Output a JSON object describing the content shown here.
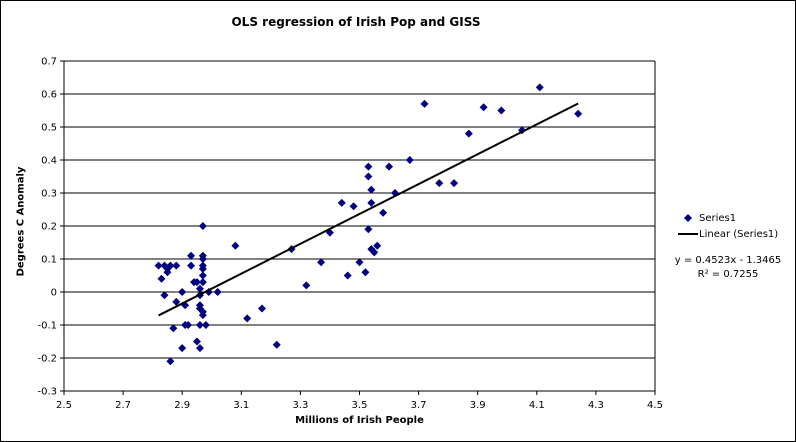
{
  "chart_data": {
    "type": "scatter",
    "title": "OLS regression of Irish Pop and GISS",
    "xlabel": "Millions of Irish People",
    "ylabel": "Degrees C Anomaly",
    "xlim": [
      2.5,
      4.5
    ],
    "ylim": [
      -0.3,
      0.7
    ],
    "xticks": [
      "2.5",
      "2.7",
      "2.9",
      "3.1",
      "3.3",
      "3.5",
      "3.7",
      "3.9",
      "4.1",
      "4.3",
      "4.5"
    ],
    "yticks": [
      "-0.3",
      "-0.2",
      "-0.1",
      "0",
      "0.1",
      "0.2",
      "0.3",
      "0.4",
      "0.5",
      "0.6",
      "0.7"
    ],
    "grid": "horizontal",
    "legend_position": "right",
    "series": [
      {
        "name": "Series1",
        "color": "#000080",
        "marker": "diamond",
        "points": [
          [
            2.82,
            0.08
          ],
          [
            2.84,
            0.08
          ],
          [
            2.86,
            0.08
          ],
          [
            2.88,
            0.08
          ],
          [
            2.85,
            0.07
          ],
          [
            2.85,
            0.06
          ],
          [
            2.83,
            0.04
          ],
          [
            2.84,
            -0.01
          ],
          [
            2.88,
            -0.03
          ],
          [
            2.87,
            -0.11
          ],
          [
            2.86,
            -0.21
          ],
          [
            2.9,
            -0.17
          ],
          [
            2.91,
            -0.1
          ],
          [
            2.92,
            -0.1
          ],
          [
            2.9,
            0.0
          ],
          [
            2.91,
            -0.04
          ],
          [
            2.93,
            0.11
          ],
          [
            2.93,
            0.08
          ],
          [
            2.94,
            0.03
          ],
          [
            2.95,
            0.03
          ],
          [
            2.95,
            -0.15
          ],
          [
            2.96,
            -0.17
          ],
          [
            2.97,
            0.2
          ],
          [
            2.97,
            0.11
          ],
          [
            2.97,
            0.1
          ],
          [
            2.97,
            0.08
          ],
          [
            2.97,
            0.07
          ],
          [
            2.97,
            0.05
          ],
          [
            2.97,
            0.03
          ],
          [
            2.96,
            0.01
          ],
          [
            2.96,
            -0.01
          ],
          [
            2.96,
            -0.04
          ],
          [
            2.96,
            -0.05
          ],
          [
            2.97,
            -0.06
          ],
          [
            2.97,
            -0.07
          ],
          [
            2.96,
            -0.1
          ],
          [
            2.98,
            -0.1
          ],
          [
            2.99,
            0.0
          ],
          [
            3.02,
            0.0
          ],
          [
            3.08,
            0.14
          ],
          [
            3.12,
            -0.08
          ],
          [
            3.17,
            -0.05
          ],
          [
            3.22,
            -0.16
          ],
          [
            3.27,
            0.13
          ],
          [
            3.32,
            0.02
          ],
          [
            3.37,
            0.09
          ],
          [
            3.4,
            0.18
          ],
          [
            3.44,
            0.27
          ],
          [
            3.46,
            0.05
          ],
          [
            3.48,
            0.26
          ],
          [
            3.5,
            0.09
          ],
          [
            3.52,
            0.06
          ],
          [
            3.53,
            0.19
          ],
          [
            3.53,
            0.35
          ],
          [
            3.53,
            0.38
          ],
          [
            3.54,
            0.31
          ],
          [
            3.54,
            0.27
          ],
          [
            3.54,
            0.13
          ],
          [
            3.55,
            0.12
          ],
          [
            3.56,
            0.14
          ],
          [
            3.58,
            0.24
          ],
          [
            3.6,
            0.38
          ],
          [
            3.62,
            0.3
          ],
          [
            3.67,
            0.4
          ],
          [
            3.72,
            0.57
          ],
          [
            3.77,
            0.33
          ],
          [
            3.82,
            0.33
          ],
          [
            3.87,
            0.48
          ],
          [
            3.92,
            0.56
          ],
          [
            3.98,
            0.55
          ],
          [
            4.05,
            0.49
          ],
          [
            4.11,
            0.62
          ],
          [
            4.24,
            0.54
          ]
        ]
      },
      {
        "name": "Linear (Series1)",
        "color": "#000000",
        "type": "trendline",
        "slope": 0.4523,
        "intercept": -1.3465,
        "x_range": [
          2.82,
          4.24
        ]
      }
    ],
    "annotations": {
      "equation": "y = 0.4523x - 1.3465",
      "r_squared": "R² = 0.7255"
    }
  }
}
